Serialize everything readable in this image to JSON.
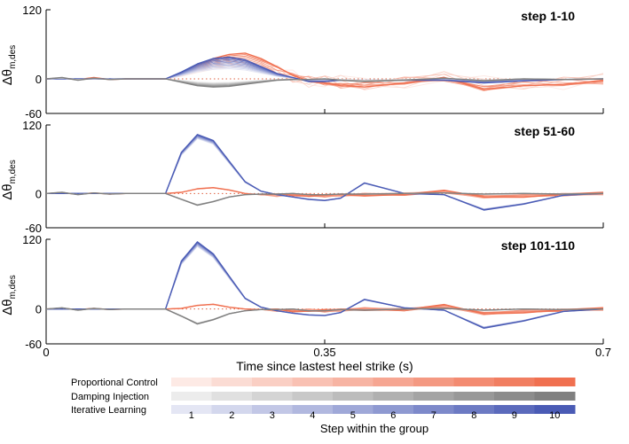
{
  "chart_data": {
    "type": "line",
    "xlabel": "Time since lastest heel strike (s)",
    "ylabel": "Δθ",
    "ylabel_sub": "m,des",
    "xlim": [
      0,
      0.7
    ],
    "x_ticks": [
      0,
      0.35,
      0.7
    ],
    "x_tick_labels": [
      "0",
      "0.35",
      "0.7"
    ],
    "ylim": [
      -60,
      120
    ],
    "y_ticks": [
      120,
      0,
      -60
    ],
    "y_tick_labels": [
      "120",
      "0",
      "-60"
    ],
    "reference_line": 0,
    "panels": [
      {
        "title": "step 1-10",
        "series": [
          {
            "name": "Proportional Control",
            "color": "#f07050",
            "x": [
              0,
              0.02,
              0.04,
              0.06,
              0.08,
              0.1,
              0.12,
              0.14,
              0.15,
              0.17,
              0.19,
              0.21,
              0.23,
              0.25,
              0.27,
              0.29,
              0.31,
              0.33,
              0.35,
              0.37,
              0.4,
              0.45,
              0.5,
              0.55,
              0.6,
              0.65,
              0.7
            ],
            "y": [
              0,
              1,
              -1,
              2,
              -1,
              0,
              0,
              0,
              0,
              8,
              20,
              30,
              36,
              38,
              30,
              18,
              5,
              -3,
              -6,
              -10,
              -12,
              -6,
              2,
              -16,
              -10,
              -8,
              -3
            ]
          },
          {
            "name": "Damping Injection",
            "color": "#808080",
            "x": [
              0,
              0.02,
              0.04,
              0.06,
              0.08,
              0.1,
              0.12,
              0.14,
              0.15,
              0.17,
              0.19,
              0.21,
              0.23,
              0.25,
              0.27,
              0.29,
              0.31,
              0.33,
              0.35,
              0.37,
              0.4,
              0.45,
              0.5,
              0.55,
              0.6,
              0.65,
              0.7
            ],
            "y": [
              0,
              2,
              -2,
              1,
              -1,
              0,
              0,
              0,
              0,
              -5,
              -10,
              -12,
              -11,
              -8,
              -5,
              -2,
              -1,
              -1,
              0,
              -2,
              -4,
              -2,
              1,
              -3,
              0,
              -1,
              0
            ]
          },
          {
            "name": "Iterative Learning",
            "color": "#4a5bb5",
            "x": [
              0,
              0.02,
              0.04,
              0.06,
              0.08,
              0.1,
              0.12,
              0.14,
              0.15,
              0.17,
              0.19,
              0.21,
              0.23,
              0.25,
              0.27,
              0.29,
              0.31,
              0.33,
              0.35,
              0.37,
              0.4,
              0.45,
              0.5,
              0.55,
              0.6,
              0.65,
              0.7
            ],
            "y": [
              0,
              0,
              0,
              0,
              0,
              0,
              0,
              0,
              0,
              10,
              22,
              30,
              32,
              28,
              18,
              8,
              2,
              -4,
              -4,
              -2,
              -3,
              -2,
              -2,
              -6,
              -3,
              -1,
              0
            ]
          }
        ]
      },
      {
        "title": "step 51-60",
        "series": [
          {
            "name": "Proportional Control",
            "color": "#f07050",
            "x": [
              0,
              0.02,
              0.04,
              0.06,
              0.08,
              0.1,
              0.12,
              0.14,
              0.15,
              0.17,
              0.19,
              0.21,
              0.23,
              0.25,
              0.27,
              0.29,
              0.31,
              0.33,
              0.35,
              0.37,
              0.4,
              0.45,
              0.5,
              0.55,
              0.6,
              0.65,
              0.7
            ],
            "y": [
              0,
              1,
              -1,
              1,
              -1,
              0,
              0,
              0,
              0,
              2,
              8,
              10,
              6,
              0,
              -2,
              -3,
              -2,
              -3,
              -4,
              -3,
              -2,
              -1,
              3,
              -6,
              -4,
              -2,
              0
            ]
          },
          {
            "name": "Damping Injection",
            "color": "#808080",
            "x": [
              0,
              0.02,
              0.04,
              0.06,
              0.08,
              0.1,
              0.12,
              0.14,
              0.15,
              0.17,
              0.19,
              0.21,
              0.23,
              0.25,
              0.27,
              0.29,
              0.31,
              0.33,
              0.35,
              0.37,
              0.4,
              0.45,
              0.5,
              0.55,
              0.6,
              0.65,
              0.7
            ],
            "y": [
              0,
              2,
              -2,
              1,
              -1,
              0,
              0,
              0,
              0,
              -10,
              -20,
              -14,
              -6,
              -2,
              -1,
              -1,
              0,
              -2,
              -2,
              -1,
              -1,
              0,
              1,
              -1,
              0,
              -1,
              0
            ]
          },
          {
            "name": "Iterative Learning",
            "color": "#4a5bb5",
            "x": [
              0,
              0.02,
              0.04,
              0.06,
              0.08,
              0.1,
              0.12,
              0.14,
              0.15,
              0.17,
              0.19,
              0.21,
              0.23,
              0.25,
              0.27,
              0.29,
              0.31,
              0.33,
              0.35,
              0.37,
              0.4,
              0.45,
              0.5,
              0.55,
              0.6,
              0.65,
              0.7
            ],
            "y": [
              0,
              0,
              0,
              0,
              0,
              0,
              0,
              0,
              0,
              70,
              100,
              90,
              55,
              20,
              4,
              -2,
              -6,
              -10,
              -12,
              -8,
              18,
              0,
              -2,
              -28,
              -18,
              -3,
              0
            ]
          }
        ]
      },
      {
        "title": "step 101-110",
        "series": [
          {
            "name": "Proportional Control",
            "color": "#f07050",
            "x": [
              0,
              0.02,
              0.04,
              0.06,
              0.08,
              0.1,
              0.12,
              0.14,
              0.15,
              0.17,
              0.19,
              0.21,
              0.23,
              0.25,
              0.27,
              0.29,
              0.31,
              0.33,
              0.35,
              0.37,
              0.4,
              0.45,
              0.5,
              0.55,
              0.6,
              0.65,
              0.7
            ],
            "y": [
              0,
              1,
              -1,
              1,
              -1,
              0,
              0,
              0,
              0,
              1,
              6,
              8,
              3,
              0,
              -1,
              -2,
              -3,
              -2,
              -3,
              -2,
              0,
              -1,
              5,
              -8,
              -4,
              -2,
              0
            ]
          },
          {
            "name": "Damping Injection",
            "color": "#808080",
            "x": [
              0,
              0.02,
              0.04,
              0.06,
              0.08,
              0.1,
              0.12,
              0.14,
              0.15,
              0.17,
              0.19,
              0.21,
              0.23,
              0.25,
              0.27,
              0.29,
              0.31,
              0.33,
              0.35,
              0.37,
              0.4,
              0.45,
              0.5,
              0.55,
              0.6,
              0.65,
              0.7
            ],
            "y": [
              0,
              2,
              -2,
              1,
              -1,
              0,
              0,
              0,
              0,
              -12,
              -25,
              -18,
              -8,
              -3,
              -1,
              -1,
              0,
              -3,
              -3,
              -1,
              -2,
              0,
              1,
              -2,
              0,
              -1,
              0
            ]
          },
          {
            "name": "Iterative Learning",
            "color": "#4a5bb5",
            "x": [
              0,
              0.02,
              0.04,
              0.06,
              0.08,
              0.1,
              0.12,
              0.14,
              0.15,
              0.17,
              0.19,
              0.21,
              0.23,
              0.25,
              0.27,
              0.29,
              0.31,
              0.33,
              0.35,
              0.37,
              0.4,
              0.45,
              0.5,
              0.55,
              0.6,
              0.65,
              0.7
            ],
            "y": [
              0,
              0,
              0,
              0,
              0,
              0,
              0,
              0,
              0,
              80,
              112,
              92,
              55,
              18,
              3,
              -3,
              -7,
              -10,
              -11,
              -6,
              16,
              2,
              -2,
              -32,
              -20,
              -4,
              0
            ]
          }
        ]
      }
    ],
    "legend": {
      "entries": [
        "Proportional Control",
        "Damping Injection",
        "Iterative Learning"
      ],
      "colorbar_title": "Step within the group",
      "steps": [
        "1",
        "2",
        "3",
        "4",
        "5",
        "6",
        "7",
        "8",
        "9",
        "10"
      ],
      "colors": {
        "Proportional Control": "#f07050",
        "Damping Injection": "#808080",
        "Iterative Learning": "#4a5bb5"
      }
    }
  }
}
